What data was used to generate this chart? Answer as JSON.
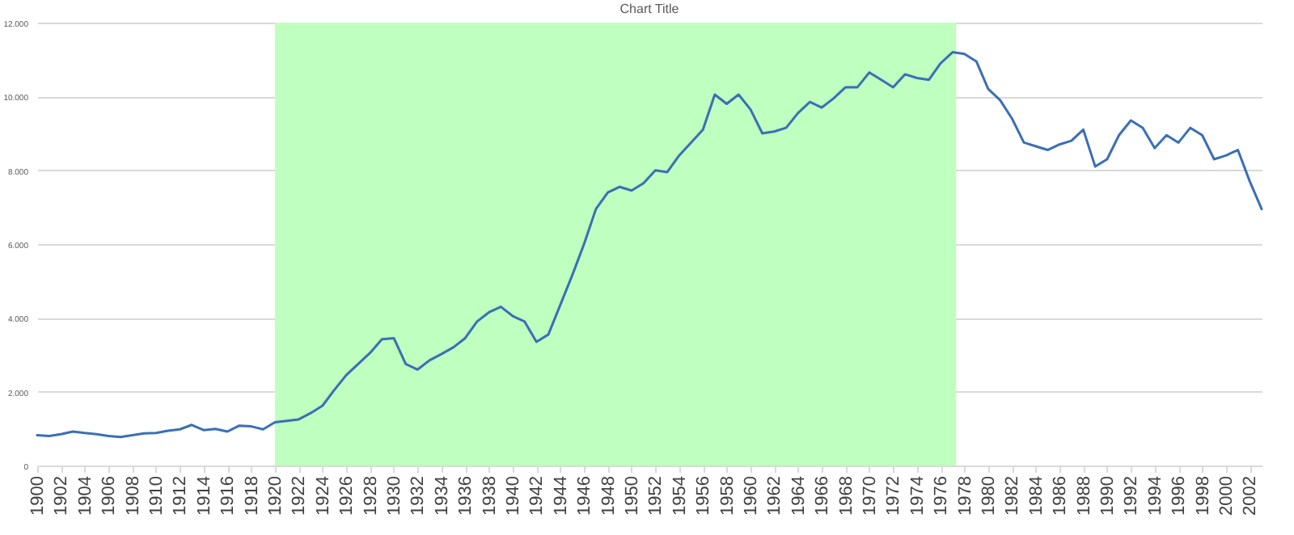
{
  "chart_data": {
    "type": "line",
    "title": "Chart Title",
    "x": [
      1900,
      1901,
      1902,
      1903,
      1904,
      1905,
      1906,
      1907,
      1908,
      1909,
      1910,
      1911,
      1912,
      1913,
      1914,
      1915,
      1916,
      1917,
      1918,
      1919,
      1920,
      1921,
      1922,
      1923,
      1924,
      1925,
      1926,
      1927,
      1928,
      1929,
      1930,
      1931,
      1932,
      1933,
      1934,
      1935,
      1936,
      1937,
      1938,
      1939,
      1940,
      1941,
      1942,
      1943,
      1944,
      1945,
      1946,
      1947,
      1948,
      1949,
      1950,
      1951,
      1952,
      1953,
      1954,
      1955,
      1956,
      1957,
      1958,
      1959,
      1960,
      1961,
      1962,
      1963,
      1964,
      1965,
      1966,
      1967,
      1968,
      1969,
      1970,
      1971,
      1972,
      1973,
      1974,
      1975,
      1976,
      1977,
      1978,
      1979,
      1980,
      1981,
      1982,
      1983,
      1984,
      1985,
      1986,
      1987,
      1988,
      1989,
      1990,
      1991,
      1992,
      1993,
      1994,
      1995,
      1996,
      1997,
      1998,
      1999,
      2000,
      2001,
      2002,
      2003
    ],
    "series": [
      {
        "color": "#3a6fb5",
        "values": [
          820,
          800,
          850,
          920,
          880,
          850,
          800,
          770,
          820,
          870,
          880,
          940,
          980,
          1100,
          960,
          990,
          920,
          1080,
          1060,
          980,
          1170,
          1210,
          1250,
          1420,
          1620,
          2050,
          2450,
          2750,
          3050,
          3420,
          3450,
          2750,
          2600,
          2850,
          3020,
          3200,
          3450,
          3900,
          4150,
          4300,
          4050,
          3900,
          3350,
          3550,
          4350,
          5150,
          6000,
          6950,
          7400,
          7550,
          7450,
          7650,
          8000,
          7950,
          8400,
          8750,
          9100,
          10050,
          9800,
          10050,
          9650,
          9000,
          9050,
          9150,
          9550,
          9850,
          9700,
          9950,
          10250,
          10250,
          10650,
          10450,
          10250,
          10600,
          10500,
          10450,
          10900,
          11200,
          11150,
          10950,
          10200,
          9900,
          9400,
          8750,
          8650,
          8550,
          8700,
          8800,
          9100,
          8100,
          8300,
          8950,
          9350,
          9150,
          8600,
          8950,
          8750,
          9150,
          8950,
          8300,
          8400,
          8550,
          7700,
          6950
        ]
      }
    ],
    "xlim": [
      1900,
      2003
    ],
    "xticks": [
      1900,
      1902,
      1904,
      1906,
      1908,
      1910,
      1912,
      1914,
      1916,
      1918,
      1920,
      1922,
      1924,
      1926,
      1928,
      1930,
      1932,
      1934,
      1936,
      1938,
      1940,
      1942,
      1944,
      1946,
      1948,
      1950,
      1952,
      1954,
      1956,
      1958,
      1960,
      1962,
      1964,
      1966,
      1968,
      1970,
      1972,
      1974,
      1976,
      1978,
      1980,
      1982,
      1984,
      1986,
      1988,
      1990,
      1992,
      1994,
      1996,
      1998,
      2000,
      2002
    ],
    "ylim": [
      0,
      12000
    ],
    "yticks": [
      0,
      {
        "value": 2000,
        "label": "2.000"
      },
      {
        "value": 4000,
        "label": "4.000"
      },
      {
        "value": 6000,
        "label": "6.000"
      },
      {
        "value": 8000,
        "label": "8.000"
      },
      {
        "value": 10000,
        "label": "10.000"
      },
      {
        "value": 12000,
        "label": "12.000"
      }
    ],
    "grid": "y",
    "bands": [
      {
        "axis": "x",
        "from": 1920,
        "to": 1977.3,
        "color": "#bfffbf"
      }
    ],
    "marker": "none",
    "line_style": "solid"
  }
}
